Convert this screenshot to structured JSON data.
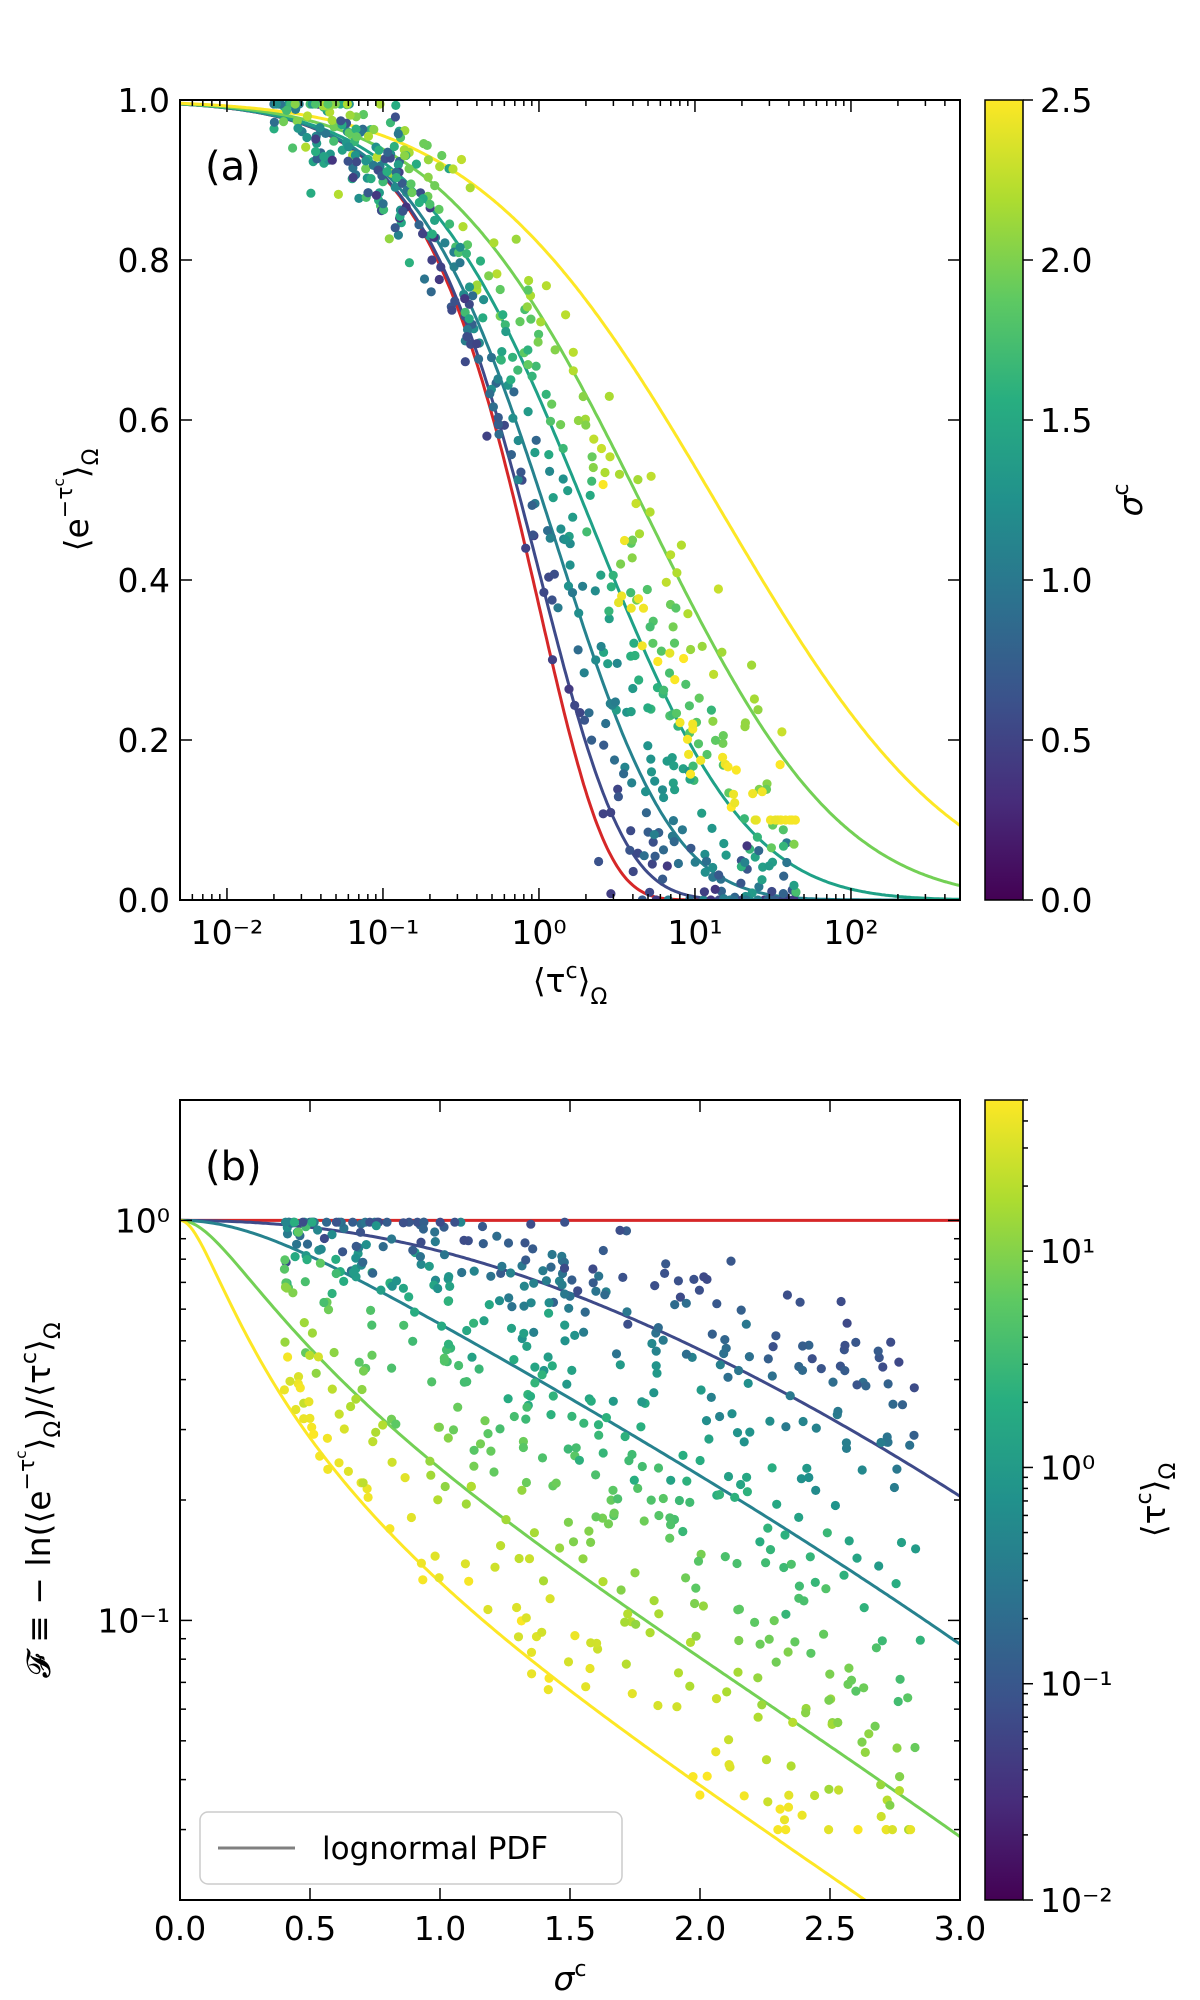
{
  "chart_data": [
    {
      "panel": "a",
      "type": "scatter",
      "panel_label": "(a)",
      "xlabel": "⟨τᶜ⟩Ω",
      "ylabel": "⟨e^(−τᶜ)⟩Ω",
      "xscale": "log",
      "xlim": [
        0.005,
        500
      ],
      "ylim": [
        0,
        1
      ],
      "xtick_labels": [
        "10⁻²",
        "10⁻¹",
        "10⁰",
        "10¹",
        "10²"
      ],
      "ytick_labels": [
        "0.0",
        "0.2",
        "0.4",
        "0.6",
        "0.8",
        "1.0"
      ],
      "colorbar": {
        "label": "σᶜ",
        "range": [
          0,
          2.5
        ],
        "tick_labels": [
          "0.0",
          "0.5",
          "1.0",
          "1.5",
          "2.0",
          "2.5"
        ]
      },
      "curves": [
        {
          "sigma_c": 0.0,
          "color": "#d62728",
          "model": "lognormal PDF"
        },
        {
          "sigma_c": 0.5,
          "color": "#3e4a89",
          "model": "lognormal PDF"
        },
        {
          "sigma_c": 1.0,
          "color": "#26828e",
          "model": "lognormal PDF"
        },
        {
          "sigma_c": 1.5,
          "color": "#1fa187",
          "model": "lognormal PDF"
        },
        {
          "sigma_c": 2.0,
          "color": "#73d055",
          "model": "lognormal PDF"
        },
        {
          "sigma_c": 2.5,
          "color": "#fde725",
          "model": "lognormal PDF"
        }
      ],
      "points_description": "about 600 simulation points, colored by σᶜ"
    },
    {
      "panel": "b",
      "type": "scatter",
      "panel_label": "(b)",
      "xlabel": "σᶜ",
      "ylabel": "𝓕 ≡ − ln(⟨e^(−τᶜ)⟩Ω)/⟨τᶜ⟩Ω",
      "yscale": "log",
      "xlim": [
        0,
        3
      ],
      "ylim": [
        0.02,
        2
      ],
      "xtick_labels": [
        "0.0",
        "0.5",
        "1.0",
        "1.5",
        "2.0",
        "2.5",
        "3.0"
      ],
      "ytick_labels": [
        "10⁻¹",
        "10⁰"
      ],
      "colorbar": {
        "label": "⟨τᶜ⟩Ω",
        "scale": "log",
        "range": [
          0.01,
          50
        ],
        "tick_labels": [
          "10⁻²",
          "10⁻¹",
          "10⁰",
          "10¹"
        ]
      },
      "curves": [
        {
          "tau_c": 0.0,
          "color": "#d62728"
        },
        {
          "tau_c": 0.3,
          "color": "#3e4a89"
        },
        {
          "tau_c": 2.0,
          "color": "#26828e"
        },
        {
          "tau_c": 15.0,
          "color": "#73d055"
        },
        {
          "tau_c": 50.0,
          "color": "#fde725"
        }
      ],
      "legend": {
        "entries": [
          "lognormal PDF"
        ],
        "location": "lower-left"
      }
    }
  ]
}
